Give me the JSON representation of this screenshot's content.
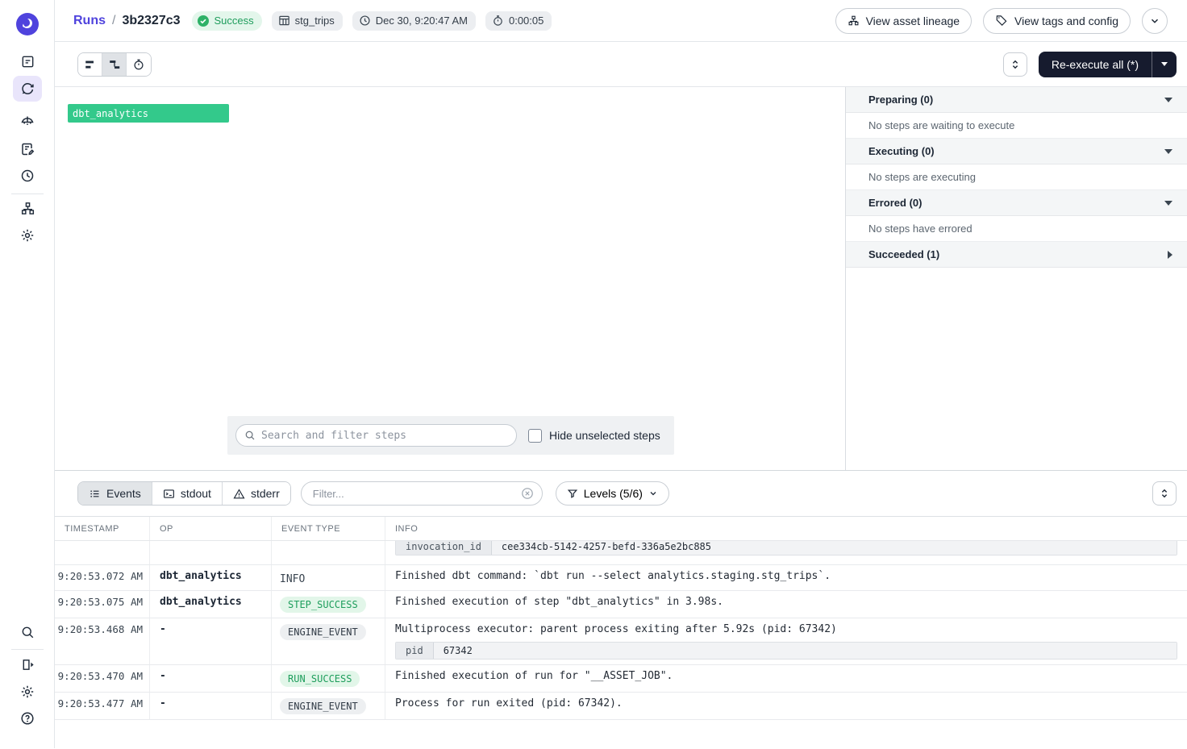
{
  "colors": {
    "accent": "#4f43dd",
    "success_text": "#1f9d5c",
    "success_bg": "#e3f6eb",
    "step_bar_green": "#33c98b",
    "dark_button": "#161b2e",
    "neutral_pill_bg": "#edeff1",
    "tag_bg": "#eceef1"
  },
  "nav": {
    "top_icons": [
      "overview-icon",
      "runs-icon",
      "assets-icon",
      "jobs-icon",
      "schedules-icon",
      "deployment-icon",
      "settings-icon"
    ],
    "bottom_icons": [
      "search-icon",
      "expand-panel-icon",
      "user-settings-icon",
      "help-icon"
    ],
    "active_item": "runs"
  },
  "topbar": {
    "breadcrumb_root": "Runs",
    "breadcrumb_separator": "/",
    "run_id": "3b2327c3",
    "status": "Success",
    "asset_tag": "stg_trips",
    "started_at": "Dec 30, 9:20:47 AM",
    "duration": "0:00:05",
    "view_asset_lineage_label": "View asset lineage",
    "view_tags_config_label": "View tags and config"
  },
  "toolbar": {
    "reexecute_label": "Re-execute all (*)"
  },
  "gantt": {
    "step_bar_label": "dbt_analytics",
    "search_placeholder": "Search and filter steps",
    "hide_unselected_label": "Hide unselected steps",
    "hide_unselected_checked": false
  },
  "status_panel": {
    "sections": [
      {
        "title": "Preparing (0)",
        "body": "No steps are waiting to execute",
        "expanded": true
      },
      {
        "title": "Executing (0)",
        "body": "No steps are executing",
        "expanded": true
      },
      {
        "title": "Errored (0)",
        "body": "No steps have errored",
        "expanded": true
      },
      {
        "title": "Succeeded (1)",
        "body": "",
        "expanded": false
      }
    ]
  },
  "logs": {
    "tabs": [
      {
        "label": "Events",
        "active": true
      },
      {
        "label": "stdout",
        "active": false
      },
      {
        "label": "stderr",
        "active": false
      }
    ],
    "filter_placeholder": "Filter...",
    "levels_label": "Levels (5/6)",
    "columns": [
      "TIMESTAMP",
      "OP",
      "EVENT TYPE",
      "INFO"
    ],
    "partial_row": {
      "key": "invocation_id",
      "value": "cee334cb-5142-4257-befd-336a5e2bc885"
    },
    "rows": [
      {
        "timestamp": "9:20:53.072 AM",
        "op": "dbt_analytics",
        "event_type": "INFO",
        "event_style": "plain",
        "info": "Finished dbt command: `dbt run --select analytics.staging.stg_trips`."
      },
      {
        "timestamp": "9:20:53.075 AM",
        "op": "dbt_analytics",
        "event_type": "STEP_SUCCESS",
        "event_style": "success",
        "info": "Finished execution of step \"dbt_analytics\" in 3.98s."
      },
      {
        "timestamp": "9:20:53.468 AM",
        "op": "-",
        "event_type": "ENGINE_EVENT",
        "event_style": "neutral",
        "info": "Multiprocess executor: parent process exiting after 5.92s (pid: 67342)",
        "meta": {
          "key": "pid",
          "value": "67342"
        }
      },
      {
        "timestamp": "9:20:53.470 AM",
        "op": "-",
        "event_type": "RUN_SUCCESS",
        "event_style": "success",
        "info": "Finished execution of run for \"__ASSET_JOB\"."
      },
      {
        "timestamp": "9:20:53.477 AM",
        "op": "-",
        "event_type": "ENGINE_EVENT",
        "event_style": "neutral",
        "info": "Process for run exited (pid: 67342)."
      }
    ]
  }
}
